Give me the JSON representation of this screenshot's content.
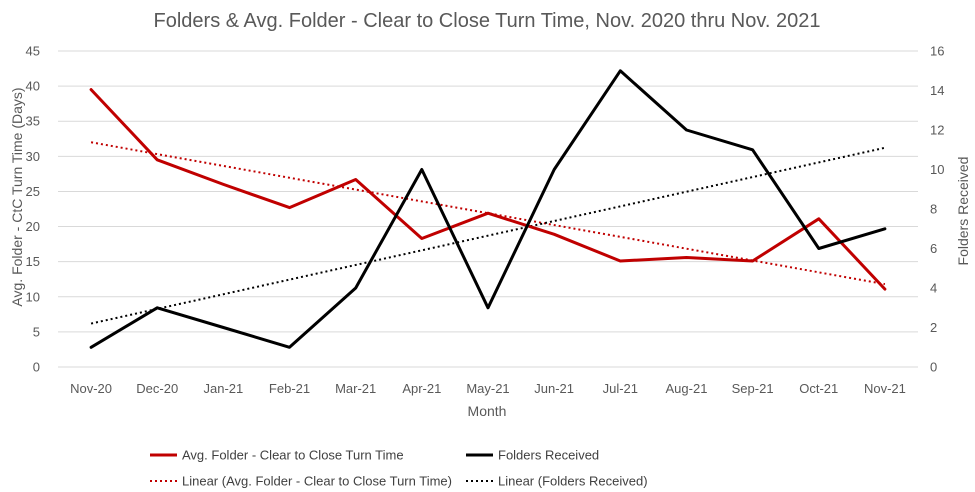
{
  "chart_data": {
    "type": "line",
    "title": "Folders & Avg. Folder - Clear to Close Turn Time, Nov. 2020 thru Nov. 2021",
    "xlabel": "Month",
    "ylabel_left": "Avg. Folder - CtC Turn Time (Days)",
    "ylabel_right": "Folders Received",
    "categories": [
      "Nov-20",
      "Dec-20",
      "Jan-21",
      "Feb-21",
      "Mar-21",
      "Apr-21",
      "May-21",
      "Jun-21",
      "Jul-21",
      "Aug-21",
      "Sep-21",
      "Oct-21",
      "Nov-21"
    ],
    "ylim_left": [
      0,
      45
    ],
    "ylim_right": [
      0,
      16
    ],
    "yticks_left": [
      "0",
      "5",
      "10",
      "15",
      "20",
      "25",
      "30",
      "35",
      "40",
      "45"
    ],
    "yticks_right": [
      "0",
      "2",
      "4",
      "6",
      "8",
      "10",
      "12",
      "14",
      "16"
    ],
    "grid": "horizontal",
    "legend_position": "bottom",
    "series": [
      {
        "name": "Avg. Folder - Clear to Close Turn Time",
        "axis": "left",
        "color": "#c00000",
        "style": "solid",
        "values": [
          39.5,
          29.5,
          26,
          22.7,
          26.7,
          18.3,
          21.9,
          18.9,
          15.1,
          15.6,
          15.1,
          21.1,
          11.1
        ]
      },
      {
        "name": "Folders Received",
        "axis": "right",
        "color": "#000000",
        "style": "solid",
        "values": [
          1,
          3,
          2,
          1,
          4,
          10,
          3,
          10,
          15,
          12,
          11,
          6,
          7
        ]
      }
    ],
    "trendlines": [
      {
        "name": "Linear (Avg. Folder - Clear to Close Turn Time)",
        "axis": "left",
        "color": "#c00000",
        "style": "dotted",
        "start": 32,
        "end": 11.8
      },
      {
        "name": "Linear (Folders Received)",
        "axis": "right",
        "color": "#000000",
        "style": "dotted",
        "start": 2.2,
        "end": 11.1
      }
    ]
  }
}
